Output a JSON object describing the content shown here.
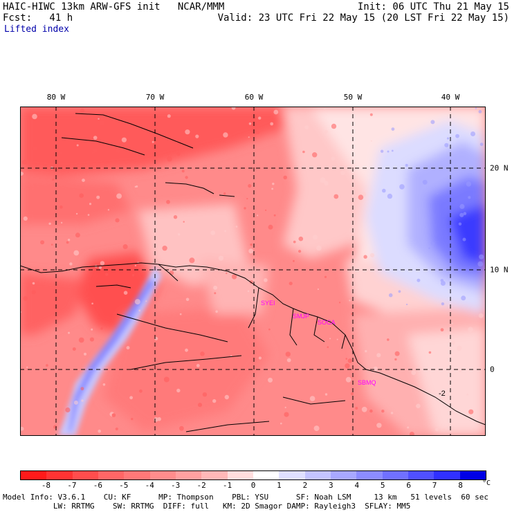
{
  "header": {
    "model": "HAIC-HIWC 13km ARW-GFS init   NCAR/MMM",
    "init": "Init: 06 UTC Thu 21 May 15",
    "fcst": "Fcst:   41 h",
    "valid": "Valid: 23 UTC Fri 22 May 15 (20 LST Fri 22 May 15)",
    "field": "Lifted index"
  },
  "map": {
    "lon_labels": [
      "80 W",
      "70 W",
      "60 W",
      "50 W",
      "40 W"
    ],
    "lat_labels": [
      "20 N",
      "10 N",
      "0"
    ],
    "stations": [
      "SYEI",
      "SMJP",
      "SOCA",
      "SBMQ"
    ],
    "contour_label": "-2",
    "station_color": "#ff00ff"
  },
  "colorbar": {
    "labels": [
      "-8",
      "-7",
      "-6",
      "-5",
      "-4",
      "-3",
      "-2",
      "-1",
      "0",
      "1",
      "2",
      "3",
      "4",
      "5",
      "6",
      "7",
      "8"
    ],
    "unit": "°C",
    "colors": [
      "#ff1a1a",
      "#ff3333",
      "#ff4d4d",
      "#ff6666",
      "#ff7878",
      "#ff8c8c",
      "#ffa0a0",
      "#ffb8b8",
      "#ffdede",
      "#ffffff",
      "#e0e0ff",
      "#c4c4ff",
      "#a8a8ff",
      "#8c8cff",
      "#7070ff",
      "#5050ff",
      "#3030ff",
      "#0000e6"
    ]
  },
  "footer": {
    "line1": "Model Info: V3.6.1    CU: KF      MP: Thompson    PBL: YSU      SF: Noah LSM     13 km   51 levels  60 sec",
    "line2": "           LW: RRTMG    SW: RRTMG  DIFF: full   KM: 2D Smagor DAMP: Rayleigh3  SFLAY: MM5"
  }
}
